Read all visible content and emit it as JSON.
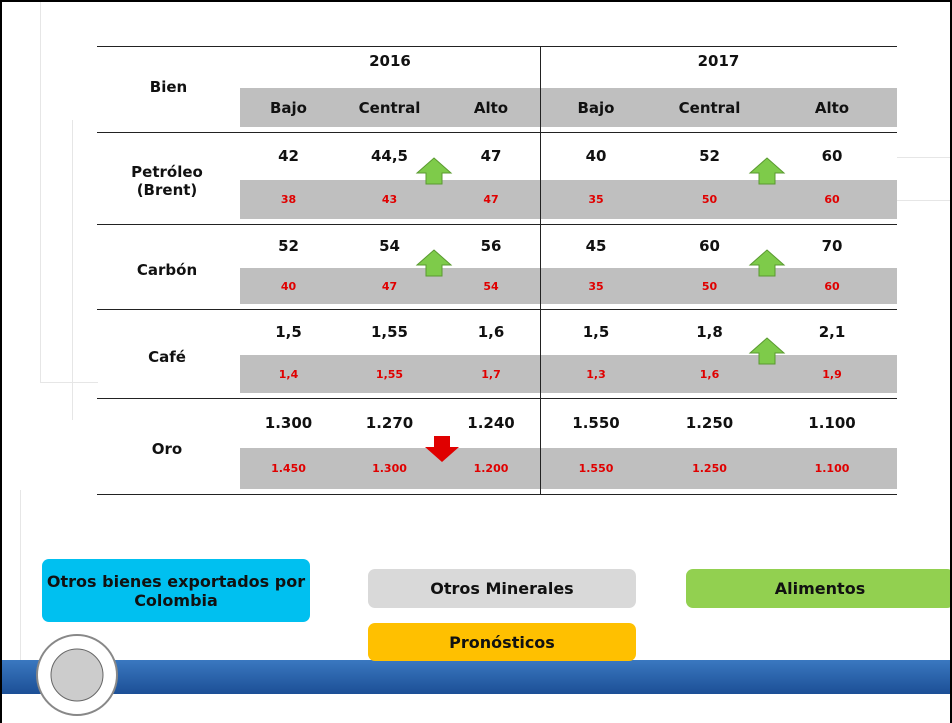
{
  "table": {
    "header": {
      "bien": "Bien",
      "years": [
        "2016",
        "2017"
      ],
      "levels": [
        "Bajo",
        "Central",
        "Alto",
        "Bajo",
        "Central",
        "Alto"
      ]
    },
    "rows": [
      {
        "name": "Petróleo (Brent)",
        "values": [
          "42",
          "44,5",
          "47",
          "40",
          "52",
          "60"
        ],
        "previous": [
          "38",
          "43",
          "47",
          "35",
          "50",
          "60"
        ]
      },
      {
        "name": "Carbón",
        "values": [
          "52",
          "54",
          "56",
          "45",
          "60",
          "70"
        ],
        "previous": [
          "40",
          "47",
          "54",
          "35",
          "50",
          "60"
        ]
      },
      {
        "name": "Café",
        "values": [
          "1,5",
          "1,55",
          "1,6",
          "1,5",
          "1,8",
          "2,1"
        ],
        "previous": [
          "1,4",
          "1,55",
          "1,7",
          "1,3",
          "1,6",
          "1,9"
        ]
      },
      {
        "name": "Oro",
        "values": [
          "1.300",
          "1.270",
          "1.240",
          "1.550",
          "1.250",
          "1.100"
        ],
        "previous": [
          "1.450",
          "1.300",
          "1.200",
          "1.550",
          "1.250",
          "1.100"
        ]
      }
    ]
  },
  "buttons": [
    "Otros bienes exportados por Colombia",
    "Otros Minerales",
    "Alimentos",
    "Pronósticos"
  ]
}
